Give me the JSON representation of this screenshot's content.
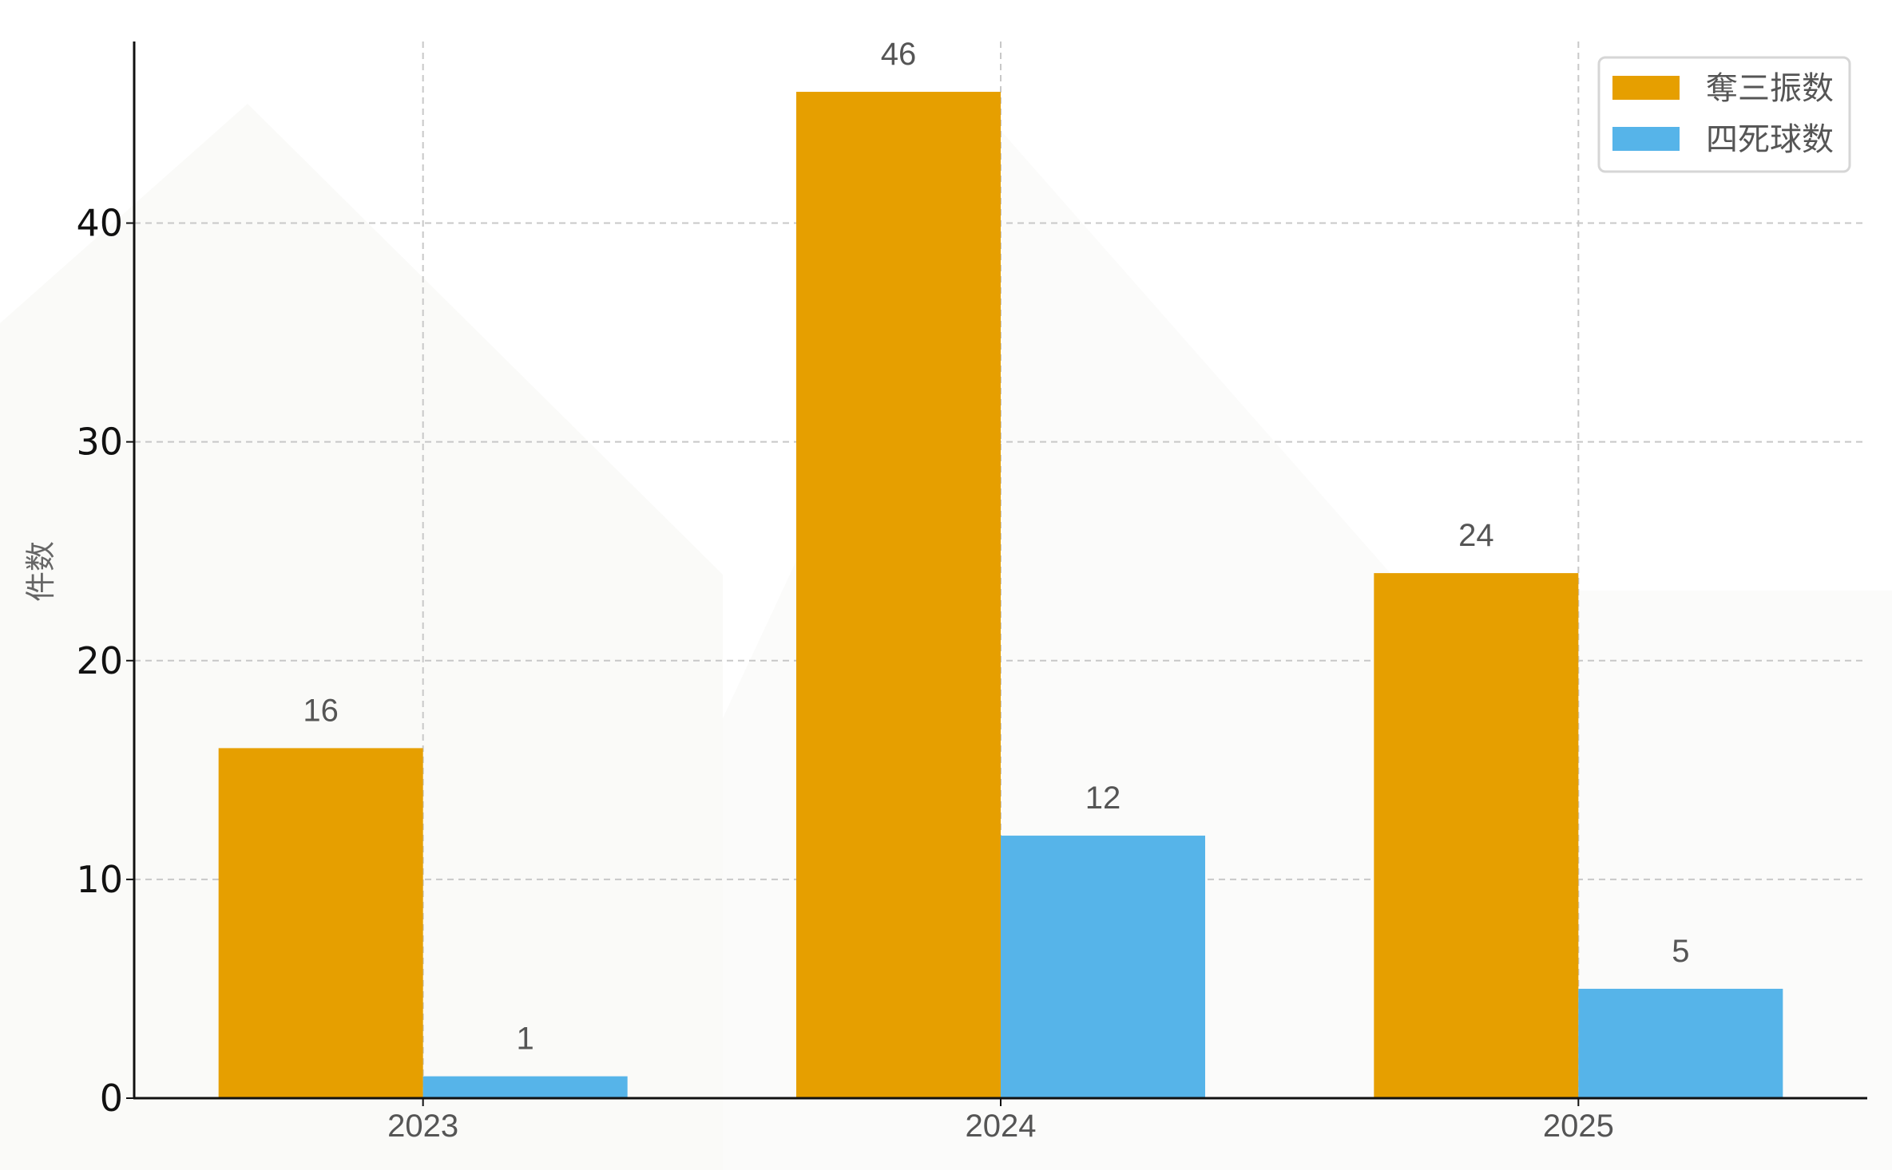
{
  "chart_data": {
    "type": "bar",
    "title": "",
    "xlabel": "",
    "ylabel": "件数",
    "categories": [
      "2023",
      "2024",
      "2025"
    ],
    "series": [
      {
        "name": "奪三振数",
        "values": [
          16,
          46,
          24
        ],
        "color": "#E69F00"
      },
      {
        "name": "四死球数",
        "values": [
          1,
          12,
          5
        ],
        "color": "#56B4E9"
      }
    ],
    "ylim": [
      0,
      48.3
    ],
    "yticks": [
      "0",
      "10",
      "20",
      "30",
      "40"
    ],
    "grid": true,
    "legend": "top-right",
    "data_labels": true
  }
}
